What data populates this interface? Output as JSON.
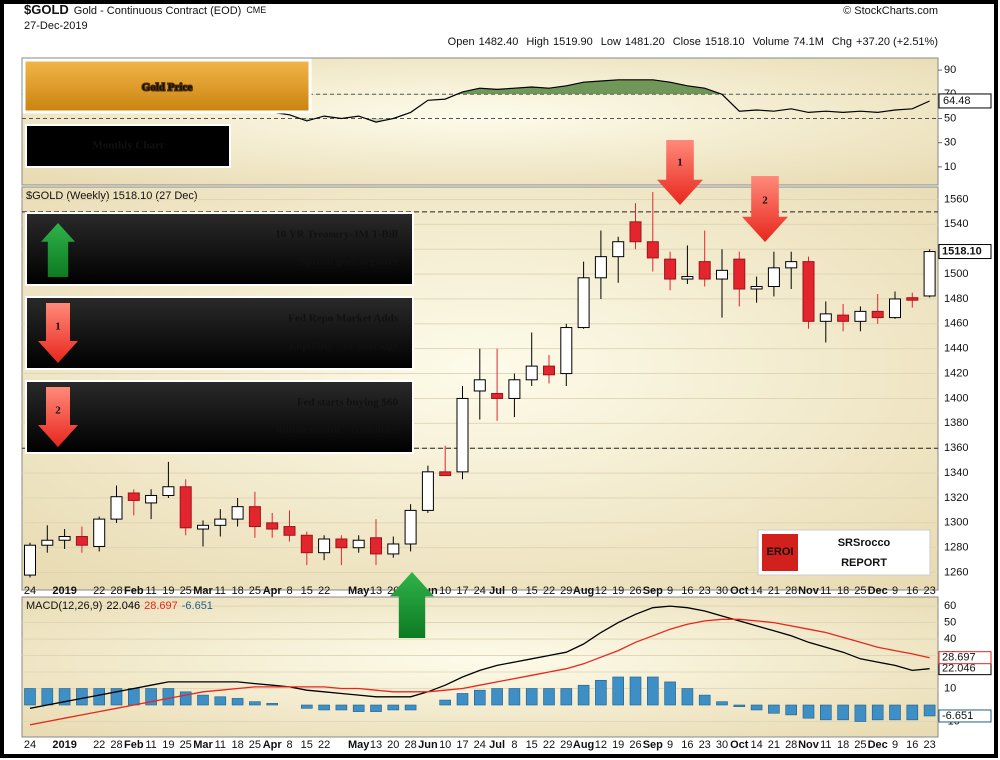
{
  "header": {
    "symbol": "$GOLD",
    "name": "Gold - Continuous Contract (EOD)",
    "exchange": "CME",
    "date": "27-Dec-2019",
    "source": "© StockCharts.com",
    "quote": [
      {
        "label": "Open",
        "value": "1482.40"
      },
      {
        "label": "High",
        "value": "1519.90"
      },
      {
        "label": "Low",
        "value": "1481.20"
      },
      {
        "label": "Close",
        "value": "1518.10"
      },
      {
        "label": "Volume",
        "value": "74.1M"
      },
      {
        "label": "Chg",
        "value": "+37.20 (+2.51%)"
      }
    ]
  },
  "chart_data": [
    {
      "type": "line",
      "ylim": [
        -5,
        100
      ],
      "yticks": [
        90,
        70,
        50,
        30,
        10
      ],
      "reference_lines": [
        70,
        50
      ],
      "series": [
        {
          "color": "#000000",
          "fill_color": "#4f7f3a",
          "values": [
            60,
            62,
            61,
            58,
            60,
            63,
            62,
            63,
            65,
            57,
            56,
            57,
            58,
            55,
            55,
            53,
            48,
            52,
            50,
            52,
            47,
            50,
            55,
            65,
            66,
            72,
            75,
            74,
            75,
            76,
            75,
            77,
            80,
            81,
            82,
            82,
            82,
            80,
            77,
            75,
            70,
            56,
            57,
            56,
            58,
            55,
            56,
            55,
            56,
            55,
            57,
            58,
            64.48
          ]
        }
      ]
    },
    {
      "type": "candlestick",
      "title": "$GOLD (Weekly) 1518.10 (27 Dec)",
      "categories": [
        "24",
        null,
        "2019",
        null,
        "22",
        "28",
        "Feb",
        "11",
        "19",
        "25",
        "Mar",
        "11",
        "18",
        "25",
        "Apr",
        "8",
        "15",
        "22",
        null,
        "May",
        "13",
        "20",
        "28",
        "Jun",
        "10",
        "17",
        "24",
        "Jul",
        "8",
        "15",
        "22",
        "29",
        "Aug",
        "12",
        "19",
        "26",
        "Sep",
        "9",
        "16",
        "23",
        "30",
        "Oct",
        "14",
        "21",
        "28",
        "Nov",
        "11",
        "18",
        "25",
        "Dec",
        "9",
        "16",
        "23"
      ],
      "open": [
        1258,
        1282,
        1286,
        1289,
        1281,
        1303,
        1324,
        1316,
        1322,
        1329,
        1295,
        1298,
        1303,
        1313,
        1300,
        1297,
        1290,
        1276,
        1287,
        1280,
        1288,
        1275,
        1283,
        1310,
        1341,
        1341,
        1406,
        1404,
        1400,
        1415,
        1426,
        1420,
        1457,
        1497,
        1514,
        1542,
        1526,
        1512,
        1496,
        1510,
        1496,
        1512,
        1488,
        1490,
        1505,
        1510,
        1462,
        1467,
        1462,
        1470,
        1465,
        1481,
        1482.4
      ],
      "high": [
        1284,
        1298,
        1295,
        1297,
        1305,
        1330,
        1327,
        1327,
        1349,
        1335,
        1302,
        1311,
        1320,
        1325,
        1308,
        1310,
        1293,
        1290,
        1290,
        1290,
        1303,
        1289,
        1315,
        1346,
        1362,
        1410,
        1440,
        1440,
        1420,
        1453,
        1435,
        1460,
        1510,
        1535,
        1530,
        1557,
        1566,
        1518,
        1523,
        1535,
        1520,
        1518,
        1498,
        1518,
        1518,
        1514,
        1478,
        1476,
        1474,
        1484,
        1486,
        1485,
        1519.9
      ],
      "low": [
        1256,
        1276,
        1279,
        1276,
        1277,
        1300,
        1306,
        1303,
        1320,
        1290,
        1281,
        1289,
        1297,
        1288,
        1288,
        1285,
        1266,
        1270,
        1266,
        1276,
        1266,
        1272,
        1277,
        1308,
        1338,
        1335,
        1383,
        1382,
        1385,
        1410,
        1412,
        1410,
        1456,
        1480,
        1493,
        1520,
        1502,
        1487,
        1492,
        1490,
        1465,
        1474,
        1477,
        1482,
        1488,
        1456,
        1445,
        1454,
        1454,
        1460,
        1464,
        1473,
        1481.2
      ],
      "close": [
        1282,
        1286,
        1289,
        1282,
        1303,
        1321,
        1318,
        1322,
        1329,
        1296,
        1298,
        1303,
        1313,
        1297,
        1295,
        1290,
        1276,
        1287,
        1280,
        1286,
        1275,
        1283,
        1310,
        1341,
        1338,
        1400,
        1415,
        1400,
        1415,
        1426,
        1419,
        1457,
        1497,
        1514,
        1526,
        1526,
        1513,
        1496,
        1498,
        1496,
        1503,
        1488,
        1490,
        1505,
        1510,
        1462,
        1468,
        1462,
        1470,
        1465,
        1480,
        1479,
        1518.1
      ],
      "last_close_label": "1518.10",
      "up_color": "#ffffff",
      "down_color": "#e3262e",
      "ylim": [
        1246,
        1570
      ],
      "yticks": [
        1560,
        1540,
        1520,
        1500,
        1480,
        1460,
        1440,
        1420,
        1400,
        1380,
        1360,
        1340,
        1320,
        1300,
        1280,
        1260
      ],
      "reference_lines": [
        1550,
        1360
      ],
      "grid": true
    },
    {
      "type": "macd",
      "title": "MACD(12,26,9)",
      "categories": [
        "24",
        null,
        "2019",
        null,
        "22",
        "28",
        "Feb",
        "11",
        "19",
        "25",
        "Mar",
        "11",
        "18",
        "25",
        "Apr",
        "8",
        "15",
        "22",
        null,
        "May",
        "13",
        "20",
        "28",
        "Jun",
        "10",
        "17",
        "24",
        "Jul",
        "8",
        "15",
        "22",
        "29",
        "Aug",
        "12",
        "19",
        "26",
        "Sep",
        "9",
        "16",
        "23",
        "30",
        "Oct",
        "14",
        "21",
        "28",
        "Nov",
        "11",
        "18",
        "25",
        "Dec",
        "9",
        "16",
        "23"
      ],
      "ylim": [
        -19.4,
        65.5
      ],
      "yticks": [
        60,
        50,
        40,
        30,
        20,
        10,
        -10
      ],
      "series": [
        {
          "kind": "line",
          "color": "#000000",
          "last_label": "22.046",
          "values": [
            -2,
            0,
            2,
            4,
            6,
            8,
            10,
            12,
            14,
            14,
            14,
            14,
            14,
            13,
            12,
            11,
            9,
            8,
            7,
            6,
            5,
            5,
            5,
            8,
            12,
            17,
            21,
            24,
            26,
            28,
            30,
            32,
            37,
            44,
            50,
            55,
            59,
            60,
            59,
            57,
            54,
            51,
            48,
            45,
            42,
            38,
            35,
            32,
            28,
            26,
            24,
            21,
            22.046
          ]
        },
        {
          "kind": "line",
          "color": "#e8261d",
          "last_label": "28.697",
          "values": [
            -12,
            -10,
            -8,
            -6,
            -4,
            -2,
            0,
            2,
            4,
            6,
            8,
            9,
            10,
            11,
            11,
            11,
            11,
            11,
            10,
            10,
            9,
            8,
            8,
            8,
            9,
            10,
            12,
            14,
            16,
            18,
            20,
            22,
            25,
            29,
            33,
            38,
            42,
            46,
            49,
            51,
            52,
            52,
            51,
            50,
            48,
            46,
            44,
            41,
            38,
            35,
            33,
            31,
            28.697
          ]
        },
        {
          "kind": "bar",
          "color": "#3e8fc6",
          "last_label": "-6.651",
          "values": [
            10,
            10,
            10,
            10,
            10,
            10,
            10,
            10,
            10,
            8,
            6,
            5,
            4,
            2,
            1,
            0,
            -2,
            -3,
            -3,
            -4,
            -4,
            -3,
            -3,
            0,
            3,
            7,
            9,
            10,
            10,
            10,
            10,
            10,
            12,
            15,
            17,
            17,
            17,
            14,
            10,
            6,
            2,
            -1,
            -3,
            -5,
            -6,
            -8,
            -9,
            -9,
            -10,
            -9,
            -9,
            -9,
            -6.651
          ]
        }
      ]
    }
  ],
  "annotations": {
    "title": "Gold Price",
    "subtitle": "Monthly Chart",
    "notes": [
      {
        "lines": [
          "10 YR Treasury-3M T-Bill",
          "Spread goes negative"
        ]
      },
      {
        "marker": "1",
        "lines": [
          "Fed Repo Market Adds",
          "Liquidity -  $$ Shortage"
        ]
      },
      {
        "marker": "2",
        "lines": [
          "Fed starts buying $60",
          "billion month - Treasuries"
        ]
      }
    ],
    "logo": {
      "badge": "EROI",
      "name": "SRSrocco",
      "tagline": "REPORT"
    }
  }
}
